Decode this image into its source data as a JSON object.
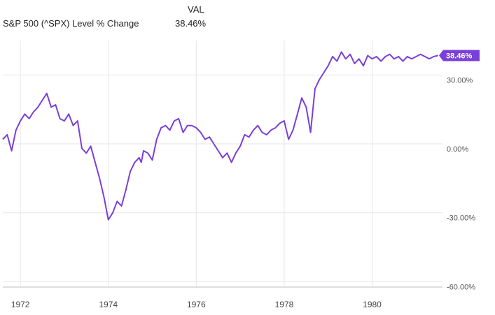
{
  "legend": {
    "header": "VAL",
    "series_name": "S&P 500 (^SPX) Level % Change",
    "current_value": "38.46%"
  },
  "colors": {
    "series": "#7a3fd9",
    "grid": "#e6e6e6",
    "axis": "#bdbdbd"
  },
  "chart_data": {
    "type": "line",
    "title": "",
    "xlabel": "",
    "ylabel": "",
    "x_tick_labels": [
      "1972",
      "1974",
      "1976",
      "1978",
      "1980"
    ],
    "x_ticks": [
      1972,
      1974,
      1976,
      1978,
      1980
    ],
    "y_tick_labels": [
      "30.00%",
      "0.00%",
      "-30.00%",
      "-60.00%"
    ],
    "y_ticks": [
      30,
      0,
      -30,
      -60
    ],
    "xlim": [
      1971.6,
      1981.6
    ],
    "ylim": [
      -62,
      45
    ],
    "grid": true,
    "last_value_label": "38.46%",
    "series": [
      {
        "name": "S&P 500 (^SPX) Level % Change",
        "x": [
          1971.6,
          1971.7,
          1971.8,
          1971.9,
          1972.0,
          1972.1,
          1972.2,
          1972.3,
          1972.4,
          1972.5,
          1972.6,
          1972.7,
          1972.8,
          1972.9,
          1973.0,
          1973.1,
          1973.2,
          1973.3,
          1973.4,
          1973.5,
          1973.6,
          1973.7,
          1973.8,
          1973.9,
          1974.0,
          1974.1,
          1974.2,
          1974.3,
          1974.4,
          1974.5,
          1974.6,
          1974.7,
          1974.75,
          1974.8,
          1974.9,
          1975.0,
          1975.1,
          1975.2,
          1975.3,
          1975.4,
          1975.5,
          1975.6,
          1975.7,
          1975.8,
          1975.9,
          1976.0,
          1976.1,
          1976.2,
          1976.3,
          1976.4,
          1976.5,
          1976.6,
          1976.7,
          1976.8,
          1976.9,
          1977.0,
          1977.1,
          1977.2,
          1977.3,
          1977.4,
          1977.5,
          1977.6,
          1977.7,
          1977.8,
          1977.9,
          1978.0,
          1978.1,
          1978.2,
          1978.3,
          1978.4,
          1978.5,
          1978.6,
          1978.7,
          1978.8,
          1978.9,
          1979.0,
          1979.1,
          1979.2,
          1979.3,
          1979.4,
          1979.5,
          1979.6,
          1979.7,
          1979.8,
          1979.9,
          1980.0,
          1980.1,
          1980.2,
          1980.3,
          1980.4,
          1980.5,
          1980.6,
          1980.7,
          1980.8,
          1980.9,
          1981.0,
          1981.1,
          1981.2,
          1981.3,
          1981.4,
          1981.5
        ],
        "y": [
          2,
          4,
          -3,
          6,
          10,
          13,
          11,
          14,
          16,
          19,
          22,
          16,
          17,
          11,
          10,
          13,
          8,
          10,
          -2,
          -4,
          -1,
          -8,
          -15,
          -23,
          -33,
          -30,
          -25,
          -27,
          -20,
          -12,
          -8,
          -6,
          -8,
          -3,
          -4,
          -7,
          2,
          7,
          8,
          6,
          10,
          11,
          5,
          8,
          8,
          7,
          5,
          2,
          3,
          0,
          -3,
          -6,
          -4,
          -8,
          -4,
          -1,
          4,
          3,
          6,
          8,
          5,
          4,
          6,
          7,
          9,
          10,
          2,
          6,
          13,
          20,
          16,
          5,
          24,
          28,
          31,
          34,
          38,
          36,
          40,
          37,
          39,
          35,
          37,
          34,
          38.46,
          37,
          38,
          36,
          38,
          39,
          37,
          38,
          36,
          38,
          37,
          38,
          39,
          38,
          37,
          38,
          38.46
        ]
      }
    ]
  }
}
